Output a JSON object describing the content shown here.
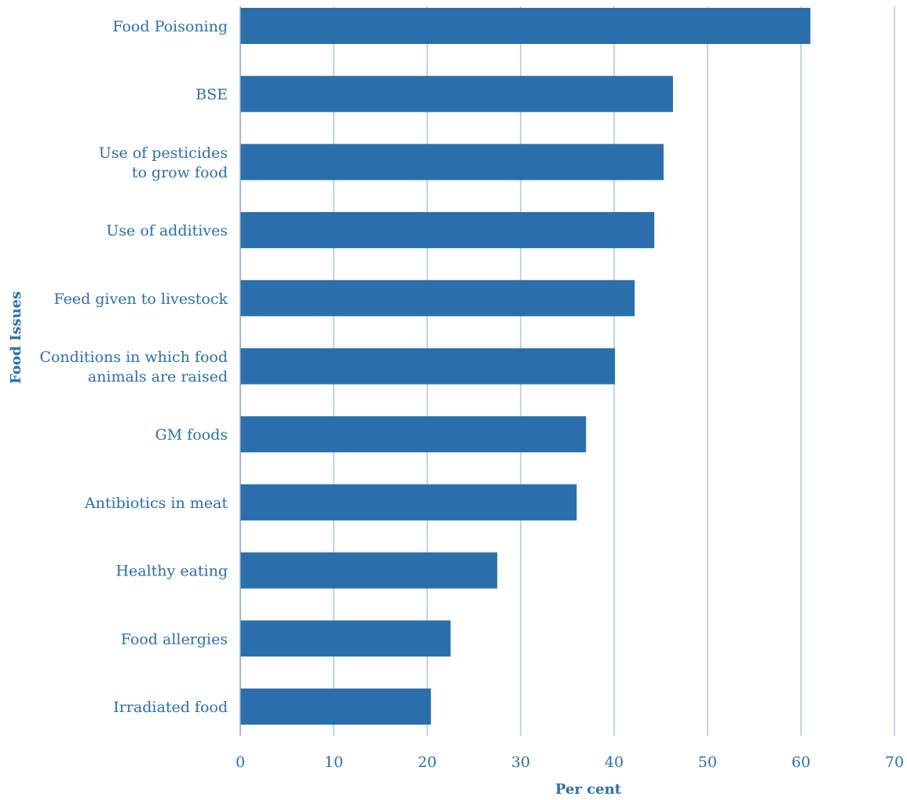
{
  "chart_data": {
    "type": "bar",
    "orientation": "horizontal",
    "title": "",
    "xlabel": "Per cent",
    "ylabel": "Food Issues",
    "xlim": [
      0,
      70
    ],
    "x_ticks": [
      0,
      10,
      20,
      30,
      40,
      50,
      60,
      70
    ],
    "grid": true,
    "categories": [
      [
        "Food Poisoning"
      ],
      [
        "BSE"
      ],
      [
        "Use of pesticides",
        "to grow food"
      ],
      [
        "Use of additives"
      ],
      [
        "Feed given to livestock"
      ],
      [
        "Conditions in which food",
        "animals are raised"
      ],
      [
        "GM foods"
      ],
      [
        "Antibiotics in meat"
      ],
      [
        "Healthy eating"
      ],
      [
        "Food allergies"
      ],
      [
        "Irradiated food"
      ]
    ],
    "values": [
      61,
      46.3,
      45.3,
      44.3,
      42.2,
      40.1,
      37,
      36,
      27.5,
      22.5,
      20.4
    ],
    "colors": {
      "bar": "#2a6fab",
      "text": "#2a6fab",
      "grid": "#9ab8d8"
    }
  }
}
